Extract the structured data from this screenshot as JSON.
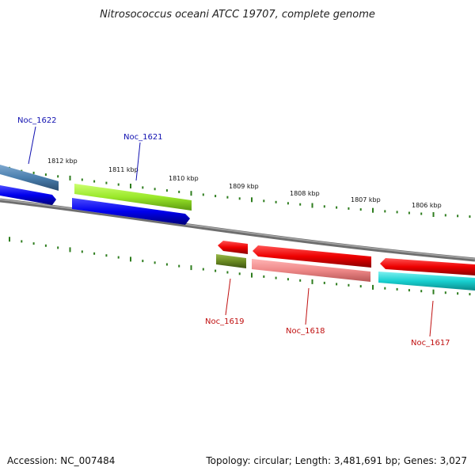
{
  "title": "Nitrosococcus oceani ATCC 19707, complete genome",
  "footer": {
    "accession": "Accession: NC_007484",
    "summary": "Topology: circular; Length: 3,481,691 bp; Genes: 3,027"
  },
  "ruler": {
    "tick_labels": [
      "1812 kbp",
      "1811 kbp",
      "1810 kbp",
      "1809 kbp",
      "1808 kbp",
      "1807 kbp",
      "1806 kbp"
    ]
  },
  "genes": [
    {
      "label": "Noc_1622",
      "strand": "forward",
      "label_color": "#1010b0"
    },
    {
      "label": "Noc_1621",
      "strand": "forward",
      "label_color": "#1010b0"
    },
    {
      "label": "Noc_1619",
      "strand": "reverse",
      "label_color": "#c01010"
    },
    {
      "label": "Noc_1618",
      "strand": "reverse",
      "label_color": "#c01010"
    },
    {
      "label": "Noc_1617",
      "strand": "reverse",
      "label_color": "#c01010"
    }
  ],
  "colors": {
    "backbone": "#8a8a8a",
    "tick": "#2e7d1e",
    "cds_forward": "#0000ee",
    "cds_reverse": "#ee0000",
    "steelblue": "#4a7fae",
    "lime": "#9ae82a",
    "olive": "#6a8a22",
    "pink": "#ee8888",
    "cyan": "#18d0d0"
  }
}
